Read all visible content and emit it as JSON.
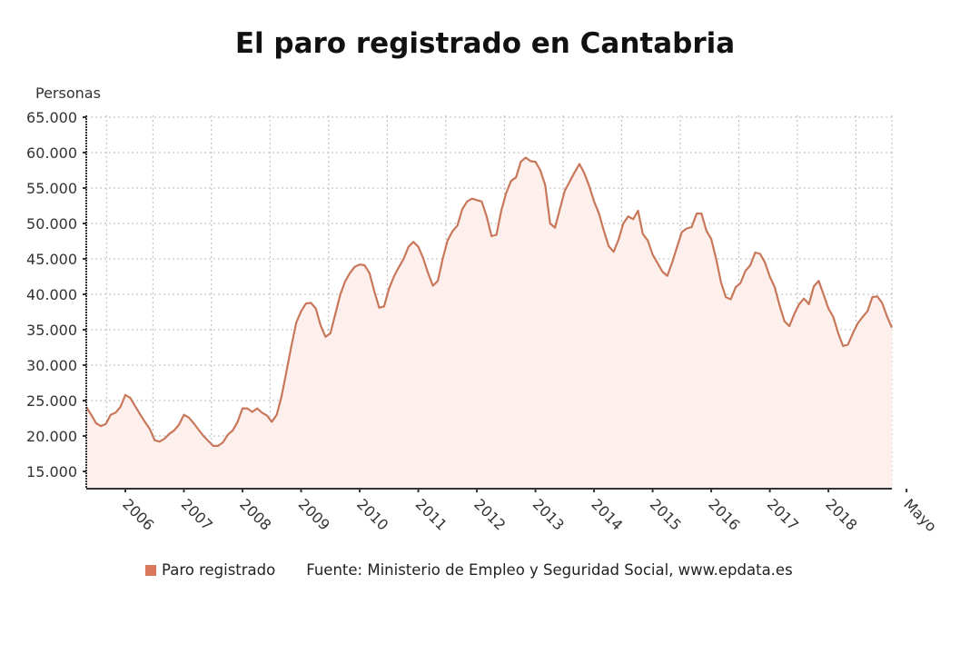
{
  "chart_data": {
    "type": "area",
    "title": "El paro registrado en Cantabria",
    "ylabel": "Personas",
    "xlabel": "",
    "ylim": [
      12500,
      65000
    ],
    "yticks": [
      15000,
      20000,
      25000,
      30000,
      35000,
      40000,
      45000,
      50000,
      55000,
      60000,
      65000
    ],
    "ytick_labels": [
      "15.000",
      "20.000",
      "25.000",
      "30.000",
      "35.000",
      "40.000",
      "45.000",
      "50.000",
      "55.000",
      "60.000",
      "65.000"
    ],
    "xtick_labels": [
      "2006",
      "2007",
      "2008",
      "2009",
      "2010",
      "2011",
      "2012",
      "2013",
      "2014",
      "2015",
      "2016",
      "2017",
      "2018",
      "Mayo"
    ],
    "xtick_month_index": [
      8,
      20,
      32,
      44,
      56,
      68,
      80,
      92,
      104,
      116,
      128,
      140,
      152,
      168
    ],
    "x_start": "2005-05",
    "x_end": "2019-05",
    "frequency": "monthly",
    "grid": true,
    "legend_position": "bottom",
    "series": [
      {
        "name": "Paro registrado",
        "color": "#c8775a",
        "fill": "#fdf0ec",
        "values": [
          24100,
          23000,
          21800,
          21400,
          21700,
          23000,
          23300,
          24100,
          25800,
          25400,
          24200,
          23100,
          22000,
          21000,
          19400,
          19200,
          19600,
          20300,
          20800,
          21600,
          23000,
          22600,
          21800,
          20900,
          20000,
          19300,
          18600,
          18600,
          19100,
          20200,
          20800,
          22000,
          23900,
          23900,
          23400,
          23900,
          23300,
          22900,
          22000,
          23000,
          25600,
          29100,
          32700,
          36000,
          37600,
          38700,
          38800,
          38000,
          35600,
          34000,
          34500,
          37200,
          39900,
          41800,
          43000,
          43900,
          44200,
          44100,
          43000,
          40400,
          38100,
          38300,
          40800,
          42500,
          43800,
          45000,
          46700,
          47400,
          46700,
          45100,
          43000,
          41200,
          41900,
          45000,
          47600,
          48900,
          49700,
          52000,
          53100,
          53500,
          53300,
          53100,
          51000,
          48200,
          48400,
          51800,
          54300,
          56000,
          56500,
          58700,
          59300,
          58800,
          58700,
          57500,
          55400,
          50000,
          49400,
          52000,
          54600,
          55900,
          57200,
          58400,
          57100,
          55300,
          53100,
          51400,
          49000,
          46800,
          46000,
          47700,
          50000,
          51000,
          50600,
          51800,
          48500,
          47600,
          45600,
          44400,
          43200,
          42600,
          44500,
          46700,
          48800,
          49300,
          49500,
          51400,
          51400,
          49000,
          47800,
          45000,
          41700,
          39600,
          39300,
          41000,
          41600,
          43300,
          44100,
          45900,
          45700,
          44500,
          42500,
          41000,
          38400,
          36200,
          35500,
          37200,
          38600,
          39400,
          38600,
          41100,
          41900,
          40000,
          38000,
          36800,
          34500,
          32700,
          32900,
          34500,
          35900,
          36800,
          37600,
          39600,
          39700,
          38800,
          36900,
          35300
        ]
      }
    ],
    "source": "Fuente: Ministerio de Empleo y Seguridad Social, www.epdata.es"
  },
  "legend": {
    "series_label": "Paro registrado",
    "source_label": "Fuente: Ministerio de Empleo y Seguridad Social, www.epdata.es"
  }
}
